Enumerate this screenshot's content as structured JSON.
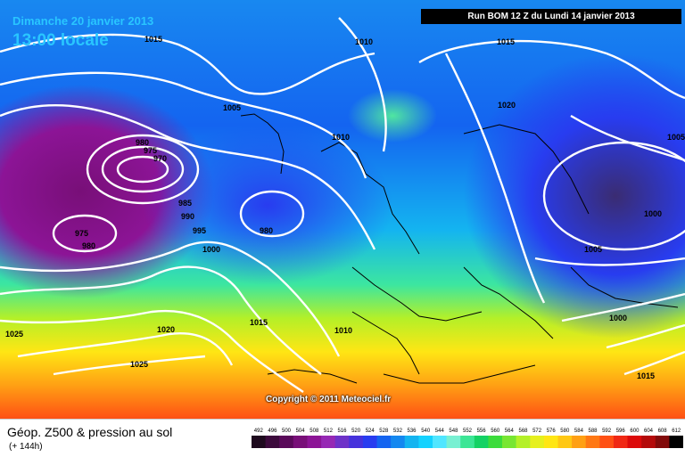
{
  "header": {
    "date": "Dimanche 20 janvier 2013",
    "time": "13:00 locale",
    "run": "Run BOM 12 Z du Lundi 14 janvier 2013"
  },
  "copyright": "Copyright © 2011 Meteociel.fr",
  "footer": {
    "title": "Géop. Z500 & pression au sol",
    "subtitle": "(+ 144h)"
  },
  "isobar_labels": [
    "1015",
    "1010",
    "1015",
    "1005",
    "1020",
    "1010",
    "980",
    "975",
    "970",
    "985",
    "990",
    "995",
    "1000",
    "980",
    "975",
    "980",
    "1005",
    "1000",
    "1015",
    "1010",
    "1020",
    "1025",
    "1025",
    "1000",
    "1005",
    "1015"
  ],
  "scale": {
    "labels": [
      "492",
      "496",
      "500",
      "504",
      "508",
      "512",
      "516",
      "520",
      "524",
      "528",
      "532",
      "536",
      "540",
      "544",
      "548",
      "552",
      "556",
      "560",
      "564",
      "568",
      "572",
      "576",
      "580",
      "584",
      "588",
      "592",
      "596",
      "600",
      "604",
      "608",
      "612"
    ],
    "colors": [
      "#1e0a1e",
      "#3c0a3c",
      "#5a0a5a",
      "#780f78",
      "#8c1496",
      "#9628b4",
      "#6e32c8",
      "#4632dc",
      "#283cf0",
      "#1464f0",
      "#1488f0",
      "#14b4f0",
      "#14d2ff",
      "#50e6ff",
      "#78f0d2",
      "#3ce696",
      "#14d264",
      "#3cdc3c",
      "#78e632",
      "#b4f028",
      "#e6f01e",
      "#ffe614",
      "#ffc814",
      "#ffa014",
      "#ff7814",
      "#ff5014",
      "#f02814",
      "#dc0a0a",
      "#b40a0a",
      "#820a0a",
      "#000000"
    ]
  }
}
